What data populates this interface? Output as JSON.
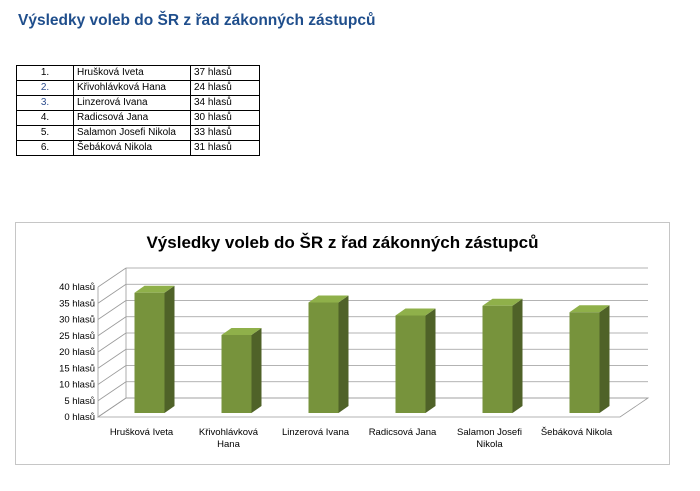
{
  "page_title": "Výsledky voleb do ŠR z řad zákonných zástupců",
  "table": {
    "rows": [
      {
        "num": "1.",
        "name": "Hrušková Iveta",
        "votes": "37 hlasů",
        "num_color": "#000000"
      },
      {
        "num": "2.",
        "name": "Křivohlávková Hana",
        "votes": "24 hlasů",
        "num_color": "#2e4e8f"
      },
      {
        "num": "3.",
        "name": "Linzerová Ivana",
        "votes": "34 hlasů",
        "num_color": "#2e4e8f"
      },
      {
        "num": "4.",
        "name": "Radicsová Jana",
        "votes": "30 hlasů",
        "num_color": "#000000"
      },
      {
        "num": "5.",
        "name": "Salamon Josefi Nikola",
        "votes": "33 hlasů",
        "num_color": "#000000"
      },
      {
        "num": "6.",
        "name": "Šebáková Nikola",
        "votes": "31 hlasů",
        "num_color": "#000000"
      }
    ]
  },
  "chart_data": {
    "type": "bar",
    "title": "Výsledky voleb do ŠR z řad zákonných zástupců",
    "categories": [
      [
        "Hrušková Iveta"
      ],
      [
        "Křivohlávková",
        "Hana"
      ],
      [
        "Linzerová Ivana"
      ],
      [
        "Radicsová Jana"
      ],
      [
        "Salamon Josefi",
        "Nikola"
      ],
      [
        "Šebáková Nikola"
      ]
    ],
    "values": [
      37,
      24,
      34,
      30,
      33,
      31
    ],
    "ylim": [
      0,
      40
    ],
    "yticks": [
      "0 hlasů",
      "5 hlasů",
      "10 hlasů",
      "15 hlasů",
      "20 hlasů",
      "25 hlasů",
      "30 hlasů",
      "35 hlasů",
      "40 hlasů"
    ],
    "grid": true,
    "style": "3d-column",
    "colors": {
      "bar_front": "#77933c",
      "bar_side": "#4f6228",
      "bar_top": "#8fb04a"
    }
  }
}
